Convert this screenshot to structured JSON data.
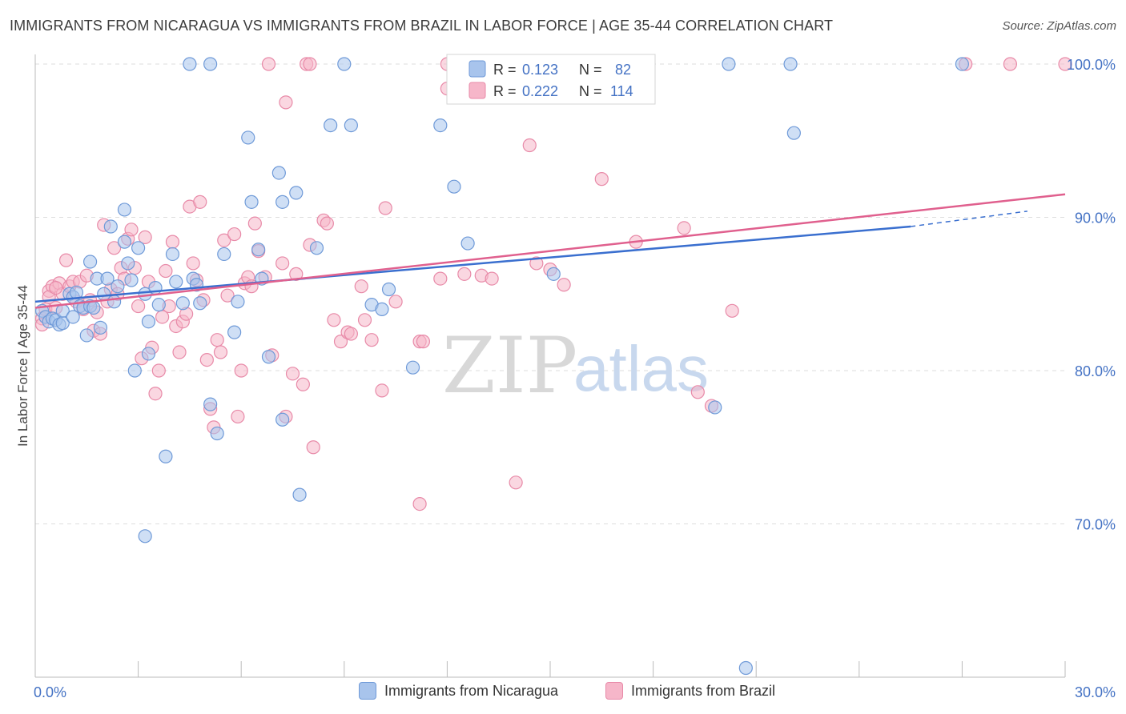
{
  "title": "IMMIGRANTS FROM NICARAGUA VS IMMIGRANTS FROM BRAZIL IN LABOR FORCE | AGE 35-44 CORRELATION CHART",
  "source": "Source: ZipAtlas.com",
  "watermark": {
    "zip": "ZIP",
    "atlas": "atlas"
  },
  "legend_top": [
    {
      "r_label": "R =",
      "r_value": "0.123",
      "n_label": "N =",
      "n_value": "82"
    },
    {
      "r_label": "R =",
      "r_value": "0.222",
      "n_label": "N =",
      "n_value": "114"
    }
  ],
  "colors": {
    "nicaragua_fill": "#a8c4ec",
    "nicaragua_stroke": "#6f9ad8",
    "nicaragua_line": "#3a6fcf",
    "brazil_fill": "#f6b6c9",
    "brazil_stroke": "#e88aa8",
    "brazil_line": "#e0608e",
    "tick_text": "#4472c4",
    "grid": "#dddddd"
  },
  "chart_data": {
    "type": "scatter",
    "title": "IMMIGRANTS FROM NICARAGUA VS IMMIGRANTS FROM BRAZIL IN LABOR FORCE | AGE 35-44 CORRELATION CHART",
    "xlabel": "",
    "ylabel": "In Labor Force | Age 35-44",
    "xlim": [
      0,
      30
    ],
    "ylim": [
      60,
      100
    ],
    "x_tick_labels": [
      "0.0%",
      "30.0%"
    ],
    "y_ticks": [
      70,
      80,
      90,
      100
    ],
    "y_tick_labels": [
      "70.0%",
      "80.0%",
      "90.0%",
      "100.0%"
    ],
    "grid": true,
    "legend_position": "top-center",
    "series": [
      {
        "name": "Immigrants from Nicaragua",
        "r": 0.123,
        "n": 82,
        "trend": {
          "x": [
            0,
            25.5
          ],
          "y": [
            84.5,
            89.4
          ],
          "dashed_to": [
            28.9,
            90.4
          ]
        },
        "points": [
          [
            0.2,
            83.9
          ],
          [
            0.3,
            83.5
          ],
          [
            0.4,
            83.2
          ],
          [
            0.5,
            83.4
          ],
          [
            0.6,
            83.3
          ],
          [
            0.7,
            83.0
          ],
          [
            0.8,
            83.1
          ],
          [
            0.8,
            83.9
          ],
          [
            1.0,
            85.0
          ],
          [
            1.1,
            84.8
          ],
          [
            1.1,
            83.5
          ],
          [
            1.2,
            85.1
          ],
          [
            1.3,
            84.2
          ],
          [
            1.4,
            84.1
          ],
          [
            1.5,
            82.3
          ],
          [
            1.6,
            84.2
          ],
          [
            1.6,
            87.1
          ],
          [
            1.7,
            84.1
          ],
          [
            1.8,
            86.0
          ],
          [
            1.9,
            82.8
          ],
          [
            2.0,
            85.0
          ],
          [
            2.1,
            86.0
          ],
          [
            2.2,
            89.4
          ],
          [
            2.3,
            84.5
          ],
          [
            2.4,
            85.5
          ],
          [
            2.6,
            88.4
          ],
          [
            2.6,
            90.5
          ],
          [
            2.7,
            87.0
          ],
          [
            2.8,
            85.9
          ],
          [
            2.9,
            80.0
          ],
          [
            3.0,
            88.0
          ],
          [
            3.2,
            85.0
          ],
          [
            3.3,
            83.2
          ],
          [
            3.3,
            81.1
          ],
          [
            3.5,
            85.4
          ],
          [
            3.6,
            84.3
          ],
          [
            3.8,
            74.4
          ],
          [
            4.0,
            87.6
          ],
          [
            4.1,
            85.8
          ],
          [
            4.3,
            84.4
          ],
          [
            4.6,
            86.0
          ],
          [
            4.7,
            85.6
          ],
          [
            4.8,
            84.4
          ],
          [
            5.1,
            77.8
          ],
          [
            5.3,
            75.9
          ],
          [
            5.5,
            87.6
          ],
          [
            5.8,
            82.5
          ],
          [
            5.9,
            84.5
          ],
          [
            6.2,
            95.2
          ],
          [
            6.3,
            91.0
          ],
          [
            6.5,
            87.9
          ],
          [
            6.6,
            86.0
          ],
          [
            6.8,
            80.9
          ],
          [
            7.1,
            92.9
          ],
          [
            7.2,
            76.8
          ],
          [
            7.2,
            91.0
          ],
          [
            7.6,
            91.6
          ],
          [
            7.7,
            71.9
          ],
          [
            8.2,
            88.0
          ],
          [
            8.6,
            96.0
          ],
          [
            9.0,
            100.0
          ],
          [
            9.2,
            96.0
          ],
          [
            9.8,
            84.3
          ],
          [
            10.1,
            84.0
          ],
          [
            10.3,
            85.3
          ],
          [
            11.0,
            80.2
          ],
          [
            11.8,
            96.0
          ],
          [
            12.2,
            92.0
          ],
          [
            12.6,
            88.3
          ],
          [
            15.1,
            86.3
          ],
          [
            15.3,
            100.0
          ],
          [
            5.1,
            100.0
          ],
          [
            4.5,
            100.0
          ],
          [
            13.4,
            100.0
          ],
          [
            16.1,
            100.0
          ],
          [
            19.8,
            77.6
          ],
          [
            22.1,
            95.5
          ],
          [
            22.0,
            100.0
          ],
          [
            20.2,
            100.0
          ],
          [
            27.0,
            100.0
          ],
          [
            20.7,
            60.6
          ],
          [
            3.2,
            69.2
          ]
        ]
      },
      {
        "name": "Immigrants from Brazil",
        "r": 0.222,
        "n": 114,
        "trend": {
          "x": [
            0,
            30
          ],
          "y": [
            84.1,
            91.5
          ]
        },
        "points": [
          [
            0.2,
            83.4
          ],
          [
            0.3,
            84.0
          ],
          [
            0.4,
            85.2
          ],
          [
            0.5,
            85.5
          ],
          [
            0.6,
            84.1
          ],
          [
            0.7,
            85.7
          ],
          [
            0.8,
            85.0
          ],
          [
            0.9,
            87.2
          ],
          [
            1.0,
            85.5
          ],
          [
            1.1,
            85.8
          ],
          [
            1.2,
            84.5
          ],
          [
            1.3,
            85.8
          ],
          [
            1.4,
            84.0
          ],
          [
            1.5,
            86.2
          ],
          [
            1.6,
            84.6
          ],
          [
            1.7,
            82.6
          ],
          [
            1.8,
            83.8
          ],
          [
            1.9,
            82.4
          ],
          [
            2.0,
            89.5
          ],
          [
            2.1,
            84.5
          ],
          [
            2.2,
            85.3
          ],
          [
            2.3,
            88.0
          ],
          [
            2.4,
            85.0
          ],
          [
            2.5,
            86.7
          ],
          [
            2.6,
            86.0
          ],
          [
            2.7,
            88.6
          ],
          [
            2.8,
            89.2
          ],
          [
            2.9,
            86.7
          ],
          [
            3.0,
            84.2
          ],
          [
            3.1,
            80.8
          ],
          [
            3.2,
            88.7
          ],
          [
            3.3,
            85.8
          ],
          [
            3.4,
            81.5
          ],
          [
            3.5,
            78.5
          ],
          [
            3.6,
            80.0
          ],
          [
            3.7,
            83.5
          ],
          [
            3.8,
            86.5
          ],
          [
            3.9,
            84.2
          ],
          [
            4.0,
            88.4
          ],
          [
            4.1,
            82.9
          ],
          [
            4.2,
            81.2
          ],
          [
            4.3,
            83.2
          ],
          [
            4.4,
            83.7
          ],
          [
            4.5,
            90.7
          ],
          [
            4.6,
            87.0
          ],
          [
            4.7,
            85.9
          ],
          [
            4.8,
            91.0
          ],
          [
            4.9,
            84.6
          ],
          [
            5.0,
            80.7
          ],
          [
            5.1,
            77.5
          ],
          [
            5.2,
            76.3
          ],
          [
            5.3,
            82.0
          ],
          [
            5.4,
            81.2
          ],
          [
            5.5,
            88.5
          ],
          [
            5.6,
            84.9
          ],
          [
            5.8,
            88.9
          ],
          [
            5.9,
            77.0
          ],
          [
            6.0,
            80.0
          ],
          [
            6.1,
            85.7
          ],
          [
            6.2,
            86.1
          ],
          [
            6.3,
            85.5
          ],
          [
            6.4,
            89.6
          ],
          [
            6.5,
            87.8
          ],
          [
            6.7,
            86.1
          ],
          [
            6.9,
            81.0
          ],
          [
            7.2,
            87.0
          ],
          [
            7.3,
            77.0
          ],
          [
            7.5,
            79.8
          ],
          [
            7.6,
            86.3
          ],
          [
            7.8,
            79.1
          ],
          [
            8.0,
            88.2
          ],
          [
            8.1,
            75.0
          ],
          [
            8.4,
            89.8
          ],
          [
            8.5,
            89.6
          ],
          [
            8.7,
            83.3
          ],
          [
            8.9,
            81.9
          ],
          [
            9.1,
            82.5
          ],
          [
            9.2,
            82.4
          ],
          [
            9.5,
            85.5
          ],
          [
            9.6,
            83.3
          ],
          [
            9.8,
            82.0
          ],
          [
            10.2,
            90.6
          ],
          [
            10.5,
            84.5
          ],
          [
            11.2,
            81.9
          ],
          [
            11.3,
            81.9
          ],
          [
            11.8,
            86.0
          ],
          [
            12.0,
            98.4
          ],
          [
            12.5,
            86.3
          ],
          [
            13.0,
            86.2
          ],
          [
            13.3,
            86.0
          ],
          [
            14.0,
            72.7
          ],
          [
            14.4,
            94.7
          ],
          [
            14.6,
            87.0
          ],
          [
            15.0,
            86.6
          ],
          [
            15.4,
            85.6
          ],
          [
            16.5,
            92.5
          ],
          [
            17.5,
            88.4
          ],
          [
            18.9,
            89.3
          ],
          [
            19.7,
            77.7
          ],
          [
            20.3,
            83.9
          ],
          [
            27.1,
            100.0
          ],
          [
            30.0,
            100.0
          ],
          [
            28.4,
            100.0
          ],
          [
            6.8,
            100.0
          ],
          [
            7.3,
            97.5
          ],
          [
            7.9,
            100.0
          ],
          [
            8.0,
            100.0
          ],
          [
            12.0,
            100.0
          ],
          [
            11.2,
            71.3
          ],
          [
            19.3,
            78.6
          ],
          [
            10.1,
            78.7
          ],
          [
            0.2,
            83.0
          ],
          [
            0.4,
            84.8
          ],
          [
            0.6,
            85.4
          ]
        ]
      }
    ]
  }
}
